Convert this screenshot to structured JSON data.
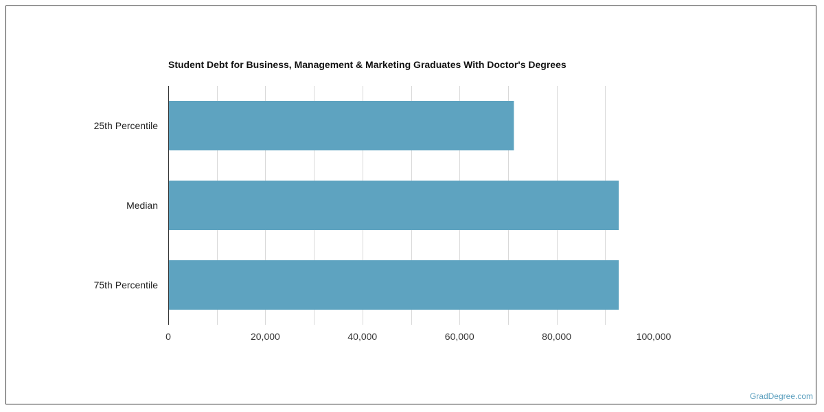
{
  "chart_data": {
    "type": "bar",
    "orientation": "horizontal",
    "title": "Student Debt for Business, Management & Marketing Graduates With Doctor's Degrees",
    "categories": [
      "25th Percentile",
      "Median",
      "75th Percentile"
    ],
    "values": [
      71200,
      92800,
      92800
    ],
    "xlim": [
      0,
      100000
    ],
    "xticks": [
      0,
      20000,
      40000,
      60000,
      80000,
      100000
    ],
    "xtick_labels": [
      "0",
      "20,000",
      "40,000",
      "60,000",
      "80,000",
      "100,000"
    ],
    "xlabel": "",
    "ylabel": "",
    "grid": true,
    "bar_color": "#5ea3c0",
    "grid_color": "#d9d9d9"
  },
  "watermark": "GradDegree.com"
}
